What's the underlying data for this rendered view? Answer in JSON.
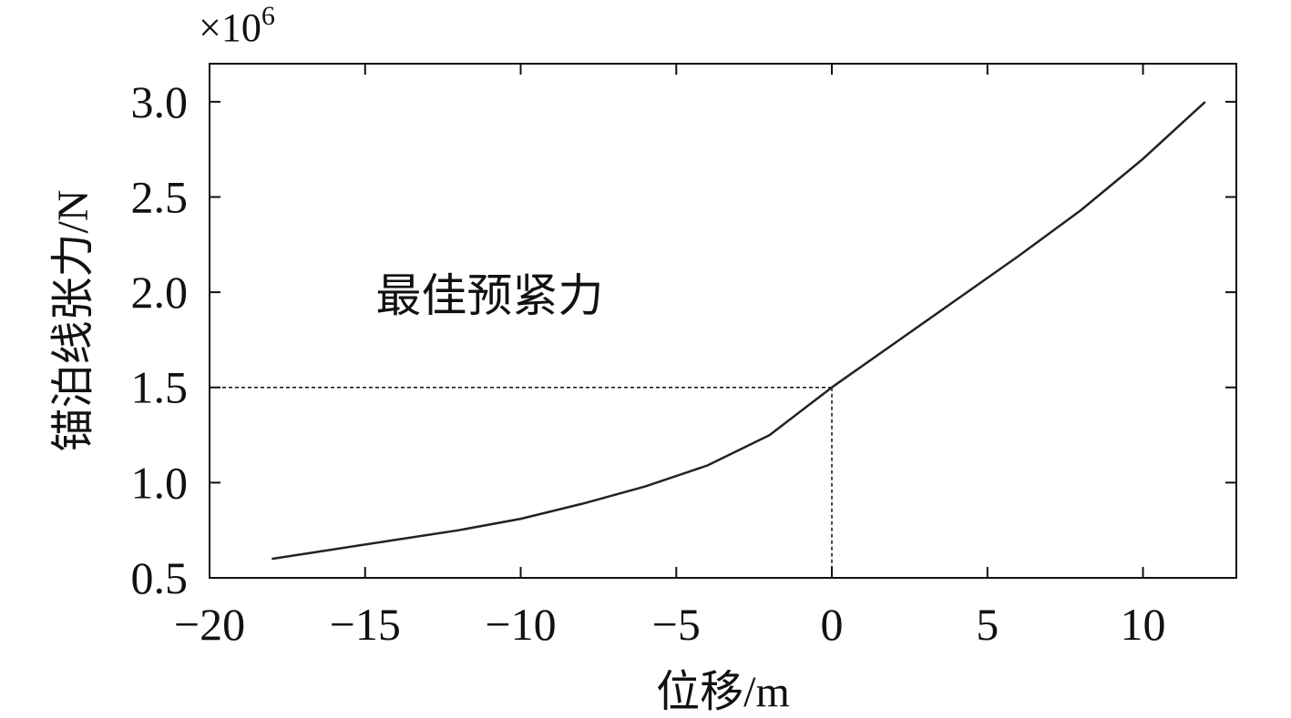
{
  "chart_data": {
    "type": "line",
    "title": "",
    "xlabel": "位移/m",
    "ylabel": "锚泊线张力/N",
    "y_multiplier": {
      "base": "×10",
      "exponent": "6"
    },
    "xlim": [
      -20,
      13
    ],
    "ylim": [
      0.5,
      3.2
    ],
    "x_ticks": [
      -20,
      -15,
      -10,
      -5,
      0,
      5,
      10
    ],
    "x_tick_labels": [
      "−20",
      "−15",
      "−10",
      "−5",
      "0",
      "5",
      "10"
    ],
    "y_ticks": [
      0.5,
      1.0,
      1.5,
      2.0,
      2.5,
      3.0
    ],
    "y_tick_labels": [
      "0.5",
      "1.0",
      "1.5",
      "2.0",
      "2.5",
      "3.0"
    ],
    "grid": false,
    "series": [
      {
        "x": [
          -18,
          -16,
          -14,
          -12,
          -10,
          -8,
          -6,
          -4,
          -2,
          0,
          2,
          4,
          6,
          8,
          10,
          12
        ],
        "y": [
          0.6,
          0.65,
          0.7,
          0.75,
          0.81,
          0.89,
          0.98,
          1.09,
          1.25,
          1.5,
          1.73,
          1.96,
          2.19,
          2.43,
          2.7,
          3.0
        ]
      }
    ],
    "annotation": {
      "text": "最佳预紧力",
      "x": 0,
      "y": 1.5
    }
  }
}
